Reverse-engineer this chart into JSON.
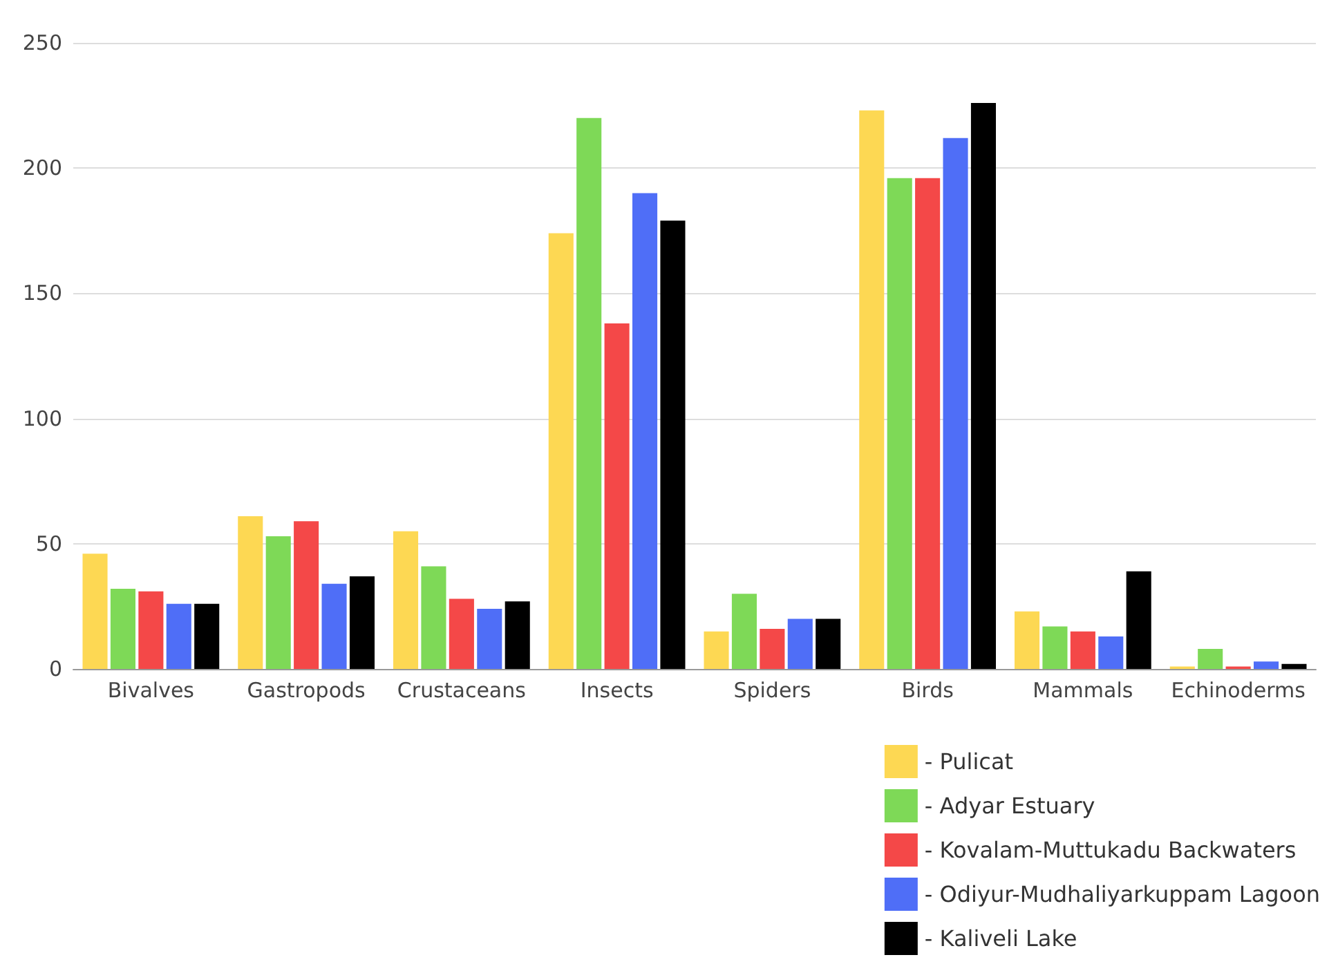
{
  "chart_data": {
    "type": "bar",
    "categories": [
      "Bivalves",
      "Gastropods",
      "Crustaceans",
      "Insects",
      "Spiders",
      "Birds",
      "Mammals",
      "Echinoderms"
    ],
    "series": [
      {
        "name": "- Pulicat",
        "color": "#fdd853",
        "values": [
          46,
          61,
          55,
          174,
          15,
          223,
          23,
          1
        ]
      },
      {
        "name": "- Adyar Estuary",
        "color": "#7ed957",
        "values": [
          32,
          53,
          41,
          220,
          30,
          196,
          17,
          8
        ]
      },
      {
        "name": "- Kovalam-Muttukadu Backwaters",
        "color": "#f44848",
        "values": [
          31,
          59,
          28,
          138,
          16,
          196,
          15,
          1
        ]
      },
      {
        "name": "- Odiyur-Mudhaliyarkuppam Lagoon",
        "color": "#4f6ef7",
        "values": [
          26,
          34,
          24,
          190,
          20,
          212,
          13,
          3
        ]
      },
      {
        "name": "- Kaliveli Lake",
        "color": "#000000",
        "values": [
          26,
          37,
          27,
          179,
          20,
          226,
          39,
          2
        ]
      }
    ],
    "ylim": [
      0,
      250
    ],
    "yticks": [
      0,
      50,
      100,
      150,
      200,
      250
    ],
    "grid": "y",
    "legend": "bottom right"
  }
}
